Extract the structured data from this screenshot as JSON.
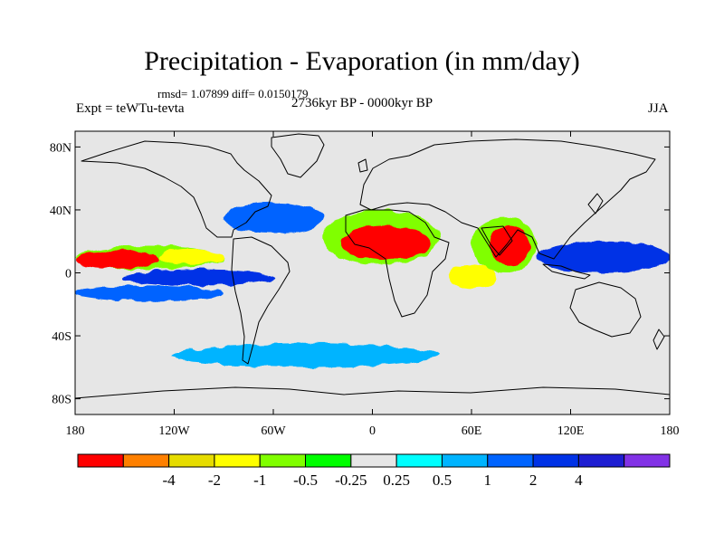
{
  "title": "Precipitation - Evaporation (in mm/day)",
  "stats": {
    "rmsd_label": "rmsd=",
    "rmsd": "1.07899",
    "diff_label": "diff=",
    "diff": "0.0150179"
  },
  "experiment": "Expt = teWTu-tevta",
  "period": "2736kyr BP - 0000kyr BP",
  "season": "JJA",
  "map": {
    "projection": "cylindrical-equidistant",
    "lon_range": [
      -180,
      180
    ],
    "lat_range": [
      -90,
      90
    ],
    "background_color": "#e6e6e6",
    "coastline_color": "#000000",
    "x_ticks": [
      {
        "lon": -180,
        "label": "180"
      },
      {
        "lon": -120,
        "label": "120W"
      },
      {
        "lon": -60,
        "label": "60W"
      },
      {
        "lon": 0,
        "label": "0"
      },
      {
        "lon": 60,
        "label": "60E"
      },
      {
        "lon": 120,
        "label": "120E"
      },
      {
        "lon": 180,
        "label": "180"
      }
    ],
    "y_ticks": [
      {
        "lat": 80,
        "label": "80N"
      },
      {
        "lat": 40,
        "label": "40N"
      },
      {
        "lat": 0,
        "label": "0"
      },
      {
        "lat": -40,
        "label": "40S"
      },
      {
        "lat": -80,
        "label": "80S"
      }
    ]
  },
  "colorbar": {
    "colors": [
      "#ff0000",
      "#ff8000",
      "#e6dc00",
      "#ffff00",
      "#80ff00",
      "#00ff00",
      "#e6e6e6",
      "#00ffff",
      "#00b4ff",
      "#0064ff",
      "#0032e6",
      "#1e1ed2",
      "#8232e6"
    ],
    "labels": [
      {
        "after_box": 2,
        "text": "-4"
      },
      {
        "after_box": 3,
        "text": "-2"
      },
      {
        "after_box": 4,
        "text": "-1"
      },
      {
        "after_box": 5,
        "text": "-0.5"
      },
      {
        "after_box": 6,
        "text": "-0.25"
      },
      {
        "after_box": 7,
        "text": "0.25"
      },
      {
        "after_box": 8,
        "text": "0.5"
      },
      {
        "after_box": 9,
        "text": "1"
      },
      {
        "after_box": 10,
        "text": "2"
      },
      {
        "after_box": 11,
        "text": "4"
      }
    ]
  },
  "chart_data": {
    "type": "heatmap",
    "variable": "Precipitation - Evaporation",
    "units": "mm/day",
    "levels": [
      -4,
      -2,
      -1,
      -0.5,
      -0.25,
      0.25,
      0.5,
      1,
      2,
      4
    ],
    "regions": [
      {
        "lon": [
          -180,
          -130
        ],
        "lat": [
          3,
          14
        ],
        "value": -4,
        "color": "#ff0000"
      },
      {
        "lon": [
          -130,
          -90
        ],
        "lat": [
          5,
          15
        ],
        "value": -1,
        "color": "#ffff00"
      },
      {
        "lon": [
          -180,
          -90
        ],
        "lat": [
          2,
          17
        ],
        "value": -0.5,
        "color": "#80ff00"
      },
      {
        "lon": [
          -150,
          -60
        ],
        "lat": [
          -8,
          2
        ],
        "value": 2,
        "color": "#0032e6"
      },
      {
        "lon": [
          -20,
          35
        ],
        "lat": [
          8,
          30
        ],
        "value": -4,
        "color": "#ff0000"
      },
      {
        "lon": [
          -30,
          40
        ],
        "lat": [
          5,
          40
        ],
        "value": -0.5,
        "color": "#80ff00"
      },
      {
        "lon": [
          70,
          95
        ],
        "lat": [
          5,
          30
        ],
        "value": -4,
        "color": "#ff0000"
      },
      {
        "lon": [
          60,
          100
        ],
        "lat": [
          0,
          35
        ],
        "value": -0.5,
        "color": "#80ff00"
      },
      {
        "lon": [
          45,
          75
        ],
        "lat": [
          -10,
          5
        ],
        "value": -1,
        "color": "#ffff00"
      },
      {
        "lon": [
          100,
          180
        ],
        "lat": [
          0,
          20
        ],
        "value": 2,
        "color": "#0032e6"
      },
      {
        "lon": [
          -90,
          -30
        ],
        "lat": [
          25,
          45
        ],
        "value": 1,
        "color": "#0064ff"
      },
      {
        "lon": [
          -180,
          -90
        ],
        "lat": [
          -18,
          -8
        ],
        "value": 1,
        "color": "#0064ff"
      },
      {
        "lon": [
          -120,
          40
        ],
        "lat": [
          -60,
          -45
        ],
        "value": 0.5,
        "color": "#00b4ff"
      }
    ]
  }
}
